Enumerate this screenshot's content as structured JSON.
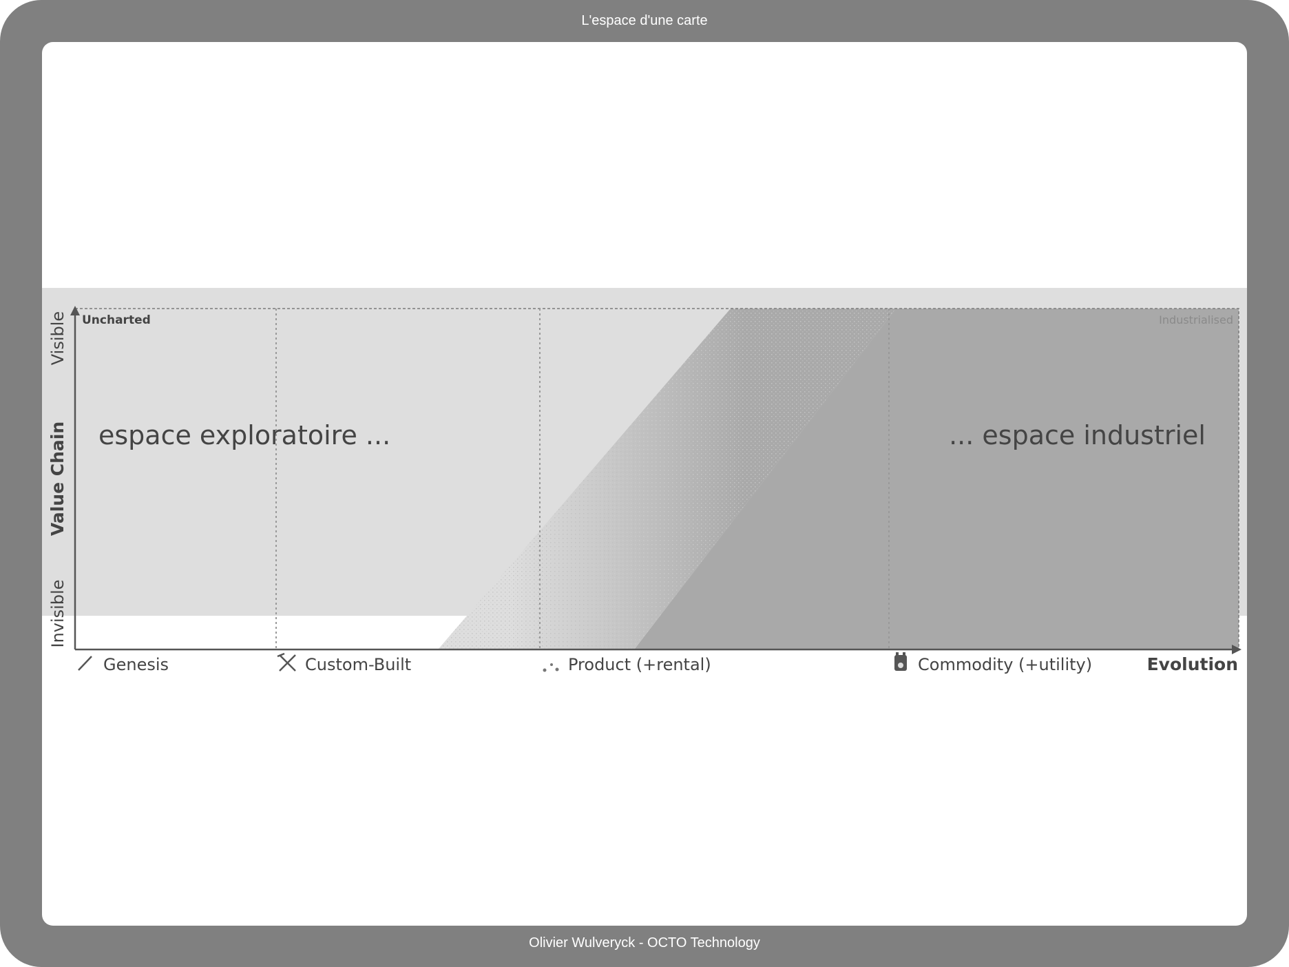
{
  "slide": {
    "title": "L'espace d'une carte",
    "footer": "Olivier Wulveryck - OCTO Technology"
  },
  "map": {
    "corner_top_left": "Uncharted",
    "corner_top_right": "Industrialised",
    "y_axis": {
      "label": "Value Chain",
      "top": "Visible",
      "bottom": "Invisible"
    },
    "x_axis": {
      "label": "Evolution",
      "stages": [
        {
          "label": "Genesis",
          "icon": "feather-icon"
        },
        {
          "label": "Custom-Built",
          "icon": "tools-icon"
        },
        {
          "label": "Product (+rental)",
          "icon": "sparkle-icon"
        },
        {
          "label": "Commodity (+utility)",
          "icon": "plug-icon"
        }
      ]
    },
    "annotations": {
      "left": "espace exploratoire ...",
      "right": "... espace industriel"
    },
    "colors": {
      "panel": "#dedede",
      "industrial": "#a9a9a9",
      "text": "#444444"
    }
  }
}
